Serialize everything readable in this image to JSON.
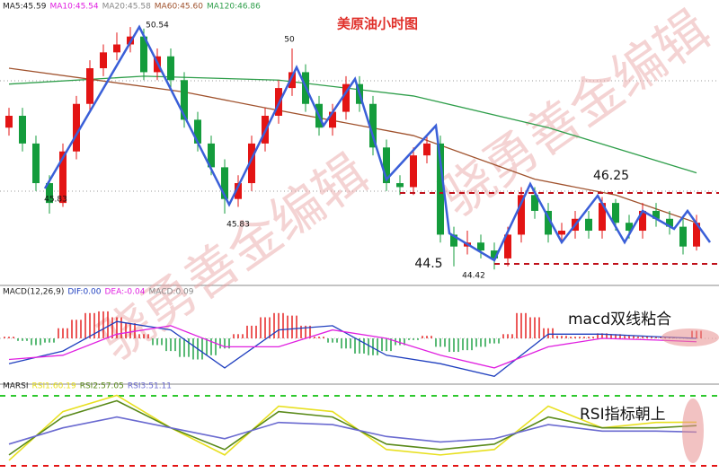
{
  "chart_data": [
    {
      "type": "candlestick",
      "title": "美原油小时图",
      "legend": [
        {
          "text": "MA5:45.59",
          "color": "#222222"
        },
        {
          "text": "MA10:45.54",
          "color": "#e020e0"
        },
        {
          "text": "MA20:45.58",
          "color": "#888888"
        },
        {
          "text": "MA60:45.60",
          "color": "#a0522d"
        },
        {
          "text": "MA120:46.86",
          "color": "#2e9e4a"
        }
      ],
      "ylim": [
        44.2,
        50.95
      ],
      "up_color": "#e31414",
      "down_color": "#149c3c",
      "open": [
        48.0,
        48.3,
        47.6,
        46.6,
        46.1,
        47.4,
        48.6,
        49.5,
        49.9,
        50.1,
        50.3,
        49.4,
        49.8,
        49.2,
        48.2,
        47.6,
        47.0,
        46.2,
        46.6,
        47.6,
        48.3,
        49.0,
        49.4,
        48.6,
        48.0,
        48.4,
        49.1,
        48.6,
        47.5,
        46.6,
        46.5,
        47.3,
        47.6,
        45.3,
        45.0,
        45.1,
        44.9,
        44.7,
        45.3,
        46.3,
        45.9,
        45.3,
        45.4,
        45.7,
        45.4,
        46.1,
        45.6,
        45.4,
        45.9,
        45.7,
        45.5,
        45.0
      ],
      "high": [
        48.5,
        48.5,
        47.8,
        46.8,
        47.6,
        48.8,
        49.7,
        50.1,
        50.4,
        50.54,
        50.5,
        50.0,
        50.0,
        49.4,
        48.4,
        47.8,
        47.2,
        46.8,
        47.8,
        48.5,
        49.2,
        50.0,
        49.6,
        48.8,
        48.6,
        49.3,
        49.3,
        48.8,
        47.7,
        46.8,
        47.5,
        47.8,
        47.8,
        45.5,
        45.4,
        45.3,
        45.1,
        45.5,
        46.5,
        46.5,
        46.1,
        45.6,
        45.9,
        45.9,
        46.25,
        46.2,
        45.8,
        46.1,
        46.1,
        45.9,
        45.7,
        45.8
      ],
      "low": [
        47.8,
        47.4,
        46.4,
        45.83,
        46.0,
        47.2,
        48.4,
        49.3,
        49.7,
        49.9,
        49.2,
        49.2,
        49.0,
        48.0,
        47.4,
        46.8,
        45.83,
        46.0,
        46.4,
        47.4,
        48.1,
        48.8,
        48.4,
        47.8,
        47.8,
        48.2,
        48.4,
        47.3,
        46.4,
        46.3,
        46.3,
        47.1,
        45.1,
        44.5,
        44.8,
        44.7,
        44.42,
        44.5,
        45.1,
        45.7,
        45.1,
        45.1,
        45.2,
        45.2,
        45.2,
        45.4,
        45.2,
        45.2,
        45.5,
        45.3,
        44.8,
        44.9
      ],
      "close": [
        48.3,
        47.6,
        46.6,
        46.1,
        47.4,
        48.6,
        49.5,
        49.9,
        50.1,
        50.3,
        49.4,
        49.8,
        49.2,
        48.2,
        47.6,
        47.0,
        46.2,
        46.6,
        47.6,
        48.3,
        49.0,
        49.4,
        48.6,
        48.0,
        48.4,
        49.1,
        48.6,
        47.5,
        46.6,
        46.5,
        47.3,
        47.6,
        45.3,
        45.0,
        45.1,
        44.9,
        44.7,
        45.3,
        46.3,
        45.9,
        45.3,
        45.4,
        45.7,
        45.4,
        46.1,
        45.6,
        45.4,
        45.9,
        45.7,
        45.5,
        45.0,
        45.6
      ],
      "lines": [
        {
          "color": "#2e9e4a",
          "x": [
            0,
            10,
            20,
            30,
            40,
            51
          ],
          "values": [
            49.1,
            49.3,
            49.2,
            48.8,
            48.0,
            46.86
          ]
        },
        {
          "color": "#a0522d",
          "x": [
            0,
            13,
            19,
            30,
            39,
            45,
            51
          ],
          "values": [
            49.5,
            48.9,
            48.5,
            47.8,
            46.7,
            46.3,
            45.6
          ]
        }
      ],
      "annotations": [
        50.54,
        50,
        45.83,
        45.83,
        46.25,
        44.5,
        44.42
      ],
      "watermark": "骁勇善金编辑"
    },
    {
      "type": "macd",
      "legend": [
        {
          "text": "MACD(12,26,9)",
          "color": "#222222"
        },
        {
          "text": "DIF:0.00",
          "color": "#1f3fbf"
        },
        {
          "text": "DEA:-0.04",
          "color": "#e020e0"
        },
        {
          "text": "MACD:0.09",
          "color": "#888888"
        }
      ],
      "note": "macd双线粘合",
      "ylim": [
        -0.5,
        0.5
      ],
      "up_color": "#e31414",
      "down_color": "#149c3c",
      "histogram": [
        0.02,
        -0.03,
        -0.08,
        -0.05,
        0.12,
        0.22,
        0.3,
        0.32,
        0.25,
        0.18,
        0.05,
        -0.08,
        -0.15,
        -0.22,
        -0.25,
        -0.2,
        -0.12,
        0.05,
        0.15,
        0.25,
        0.3,
        0.27,
        0.15,
        0.02,
        -0.05,
        -0.12,
        -0.18,
        -0.2,
        -0.15,
        -0.08,
        -0.02,
        0.03,
        -0.1,
        -0.16,
        -0.14,
        -0.1,
        -0.06,
        0.05,
        0.3,
        0.25,
        0.12,
        0.03,
        0.02,
        0.02,
        0.06,
        0.05,
        0.03,
        0.02,
        0.02,
        0.01,
        0.0,
        0.09
      ],
      "x": [
        0,
        4,
        8,
        12,
        16,
        20,
        24,
        28,
        32,
        36,
        40,
        44,
        48,
        51
      ],
      "series": [
        {
          "color": "#1f3fbf",
          "values": [
            -0.3,
            -0.15,
            0.2,
            0.1,
            -0.35,
            0.1,
            0.15,
            -0.2,
            -0.3,
            -0.45,
            0.05,
            0.05,
            0.02,
            0.0
          ]
        },
        {
          "color": "#e020e0",
          "values": [
            -0.25,
            -0.2,
            0.05,
            0.15,
            -0.1,
            -0.1,
            0.1,
            0.0,
            -0.2,
            -0.35,
            -0.1,
            0.0,
            -0.02,
            -0.04
          ]
        }
      ]
    },
    {
      "type": "rsi",
      "legend": [
        {
          "text": "MARSI",
          "color": "#222222"
        },
        {
          "text": "RSI1:60.19",
          "color": "#e8e020"
        },
        {
          "text": "RSI2:57.05",
          "color": "#5a8a1a"
        },
        {
          "text": "RSI3:51.11",
          "color": "#6a6ad0"
        }
      ],
      "note": "RSI指标朝上",
      "ylim": [
        15,
        92
      ],
      "x": [
        0,
        4,
        8,
        12,
        16,
        20,
        24,
        28,
        32,
        36,
        40,
        44,
        48,
        51
      ],
      "series": [
        {
          "color": "#e8e020",
          "values": [
            25,
            70,
            85,
            55,
            30,
            75,
            70,
            35,
            30,
            35,
            75,
            55,
            60,
            60.19
          ]
        },
        {
          "color": "#5a8a1a",
          "values": [
            30,
            65,
            80,
            55,
            35,
            70,
            65,
            40,
            35,
            40,
            65,
            55,
            55,
            57.05
          ]
        },
        {
          "color": "#6a6ad0",
          "values": [
            40,
            55,
            65,
            55,
            45,
            60,
            58,
            47,
            42,
            45,
            58,
            52,
            52,
            51.11
          ]
        }
      ]
    }
  ]
}
